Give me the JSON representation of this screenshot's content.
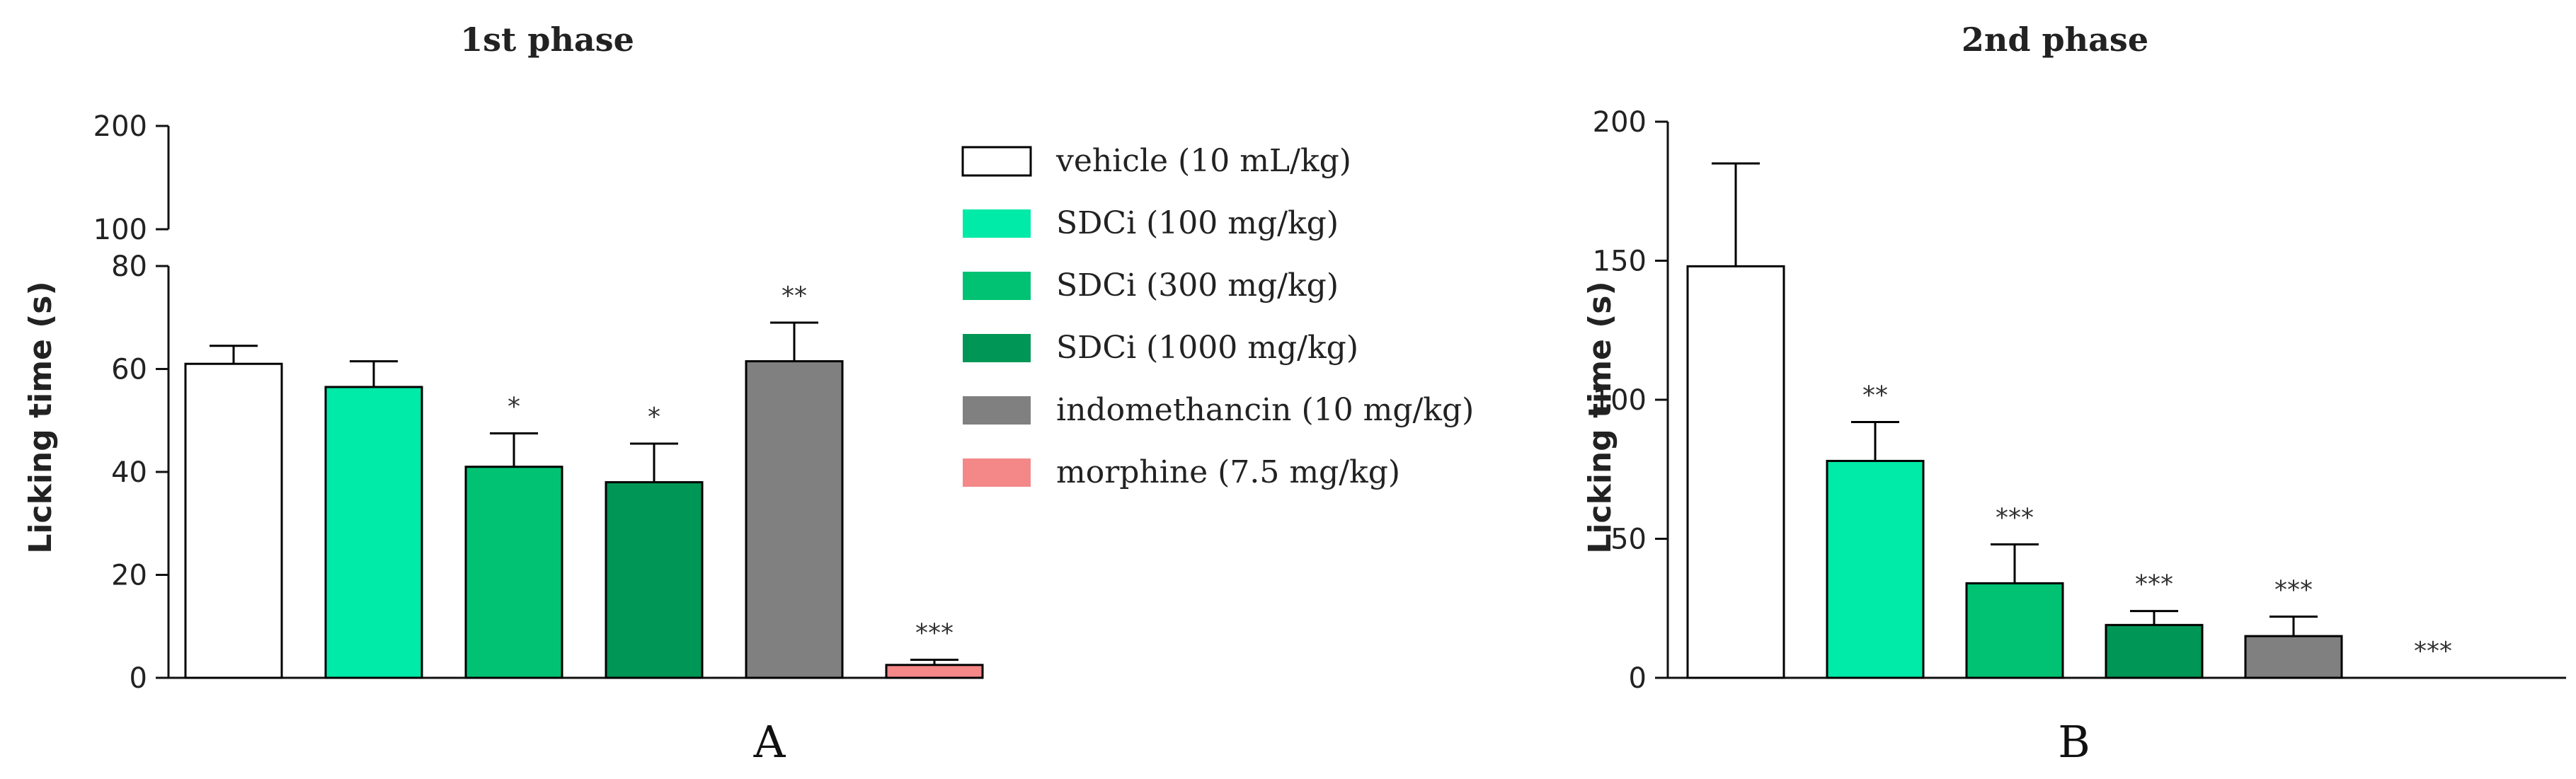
{
  "colors": {
    "vehicle": "#ffffff",
    "sdci100": "#00eaa8",
    "sdci300": "#00c272",
    "sdci1000": "#009655",
    "indomethacin": "#808080",
    "morphine": "#f48888",
    "stroke": "#000000"
  },
  "legend": {
    "placement": "right of panel A",
    "items": [
      "vehicle (10 mL/kg)",
      "SDCi (100 mg/kg)",
      "SDCi (300 mg/kg)",
      "SDCi (1000 mg/kg)",
      "indomethancin (10 mg/kg)",
      "morphine (7.5 mg/kg)"
    ]
  },
  "chart_data": [
    {
      "type": "bar",
      "panel_label": "A",
      "title": "1st phase",
      "ylabel": "Licking time (s)",
      "xlabel": "",
      "axis_break": true,
      "ylim": [
        0,
        200
      ],
      "ylim_lower_segment": [
        0,
        80
      ],
      "upper_segment_ticks": [
        "100",
        "200"
      ],
      "yticks": [
        "0",
        "20",
        "40",
        "60",
        "80"
      ],
      "grid": false,
      "categories": [
        "vehicle (10 mL/kg)",
        "SDCi (100 mg/kg)",
        "SDCi (300 mg/kg)",
        "SDCi (1000 mg/kg)",
        "indomethancin (10 mg/kg)",
        "morphine (7.5 mg/kg)"
      ],
      "values": [
        61,
        56.5,
        41,
        38,
        61.5,
        2.5
      ],
      "errors": [
        3.5,
        5,
        6.5,
        7.5,
        7.5,
        1
      ],
      "significance": [
        "",
        "",
        "*",
        "*",
        "**",
        "***"
      ]
    },
    {
      "type": "bar",
      "panel_label": "B",
      "title": "2nd phase",
      "ylabel": "Licking time (s)",
      "xlabel": "",
      "ylim": [
        0,
        200
      ],
      "yticks": [
        "0",
        "50",
        "100",
        "150",
        "200"
      ],
      "grid": false,
      "categories": [
        "vehicle (10 mL/kg)",
        "SDCi (100 mg/kg)",
        "SDCi (300 mg/kg)",
        "SDCi (1000 mg/kg)",
        "indomethancin (10 mg/kg)",
        "morphine (7.5 mg/kg)"
      ],
      "values": [
        148,
        78,
        34,
        19,
        15,
        0
      ],
      "errors": [
        37,
        14,
        14,
        5,
        7,
        0
      ],
      "significance": [
        "",
        "**",
        "***",
        "***",
        "***",
        "***"
      ]
    }
  ]
}
